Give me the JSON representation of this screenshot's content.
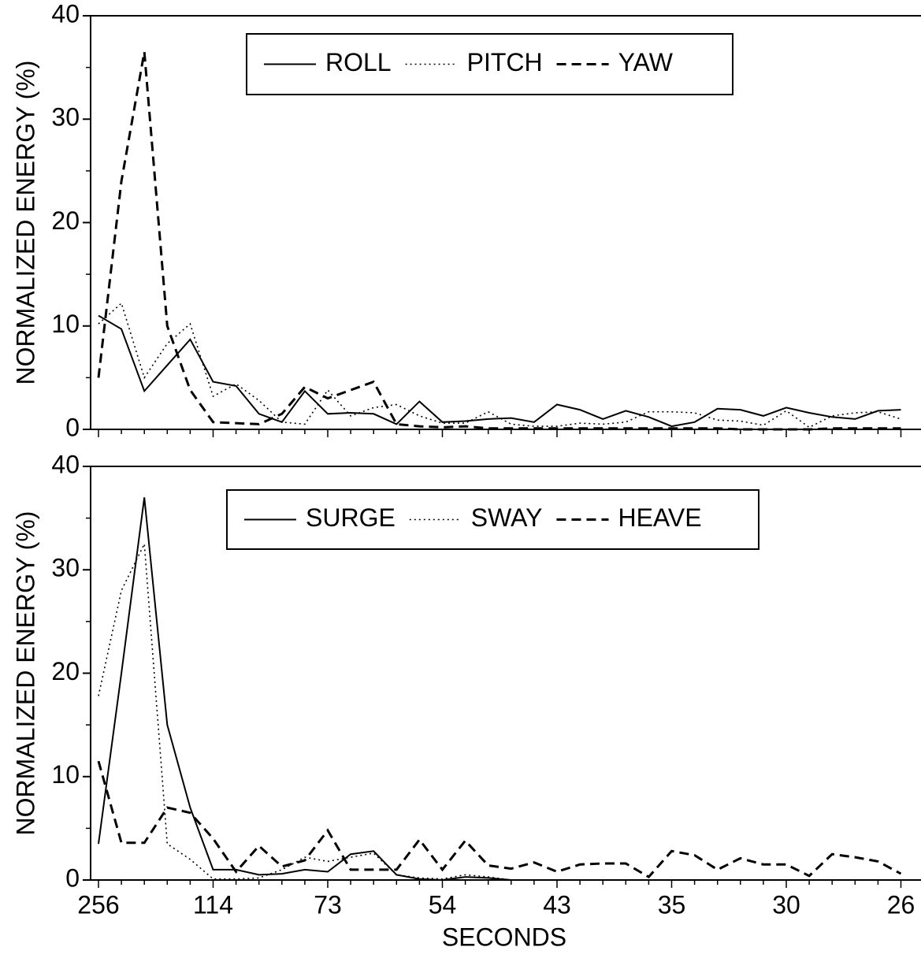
{
  "chart_data": [
    {
      "type": "line",
      "y_label": "NORMALIZED ENERGY (%)",
      "categories": [
        "256",
        null,
        null,
        null,
        null,
        "114",
        null,
        null,
        null,
        null,
        "73",
        null,
        null,
        null,
        null,
        "54",
        null,
        null,
        null,
        null,
        "43",
        null,
        null,
        null,
        null,
        "35",
        null,
        null,
        null,
        null,
        "30",
        null,
        null,
        null,
        null,
        "26"
      ],
      "ylim": [
        0,
        40
      ],
      "yticks": [
        0,
        10,
        20,
        30,
        40
      ],
      "series": [
        {
          "name": "ROLL",
          "color": "#000000",
          "style": "solid",
          "values": [
            11,
            9.7,
            3.7,
            6.2,
            8.7,
            4.6,
            4.2,
            1.5,
            0.7,
            3.7,
            1.5,
            1.6,
            1.5,
            0.5,
            2.7,
            0.7,
            0.8,
            1,
            1.1,
            0.7,
            2.4,
            1.9,
            1,
            1.8,
            1.2,
            0.3,
            0.7,
            2,
            1.9,
            1.3,
            2.1,
            1.6,
            1.2,
            1,
            1.8,
            1.9
          ]
        },
        {
          "name": "PITCH",
          "color": "#000000",
          "style": "dotted",
          "values": [
            10.2,
            12.2,
            5,
            8.3,
            10.2,
            3.2,
            4.4,
            2.8,
            0.7,
            0.5,
            3.8,
            1.3,
            2.1,
            2.4,
            1.3,
            0.6,
            0.6,
            1.7,
            0.5,
            0.3,
            0.3,
            0.6,
            0.5,
            0.7,
            1.7,
            1.7,
            1.6,
            0.9,
            0.8,
            0.4,
            1.8,
            0.2,
            1.3,
            1.6,
            1.7,
            1
          ]
        },
        {
          "name": "YAW",
          "color": "#000000",
          "style": "dashed",
          "values": [
            5,
            24,
            36.5,
            10,
            3.8,
            0.7,
            0.6,
            0.5,
            1.5,
            4.1,
            3,
            3.8,
            4.6,
            0.5,
            0.3,
            0.2,
            0.3,
            0.1,
            0.1,
            0.1,
            0.1,
            0.1,
            0.1,
            0.1,
            0.1,
            0.1,
            0.1,
            0.1,
            0,
            0,
            0,
            0,
            0.1,
            0.1,
            0.1,
            0.1
          ]
        }
      ]
    },
    {
      "type": "line",
      "y_label": "NORMALIZED ENERGY (%)",
      "x_label": "SECONDS",
      "categories": [
        "256",
        null,
        null,
        null,
        null,
        "114",
        null,
        null,
        null,
        null,
        "73",
        null,
        null,
        null,
        null,
        "54",
        null,
        null,
        null,
        null,
        "43",
        null,
        null,
        null,
        null,
        "35",
        null,
        null,
        null,
        null,
        "30",
        null,
        null,
        null,
        null,
        "26"
      ],
      "ylim": [
        0,
        40
      ],
      "yticks": [
        0,
        10,
        20,
        30,
        40
      ],
      "series": [
        {
          "name": "SURGE",
          "color": "#000000",
          "style": "solid",
          "values": [
            3.5,
            20,
            37,
            15,
            7,
            1,
            1,
            0.5,
            0.6,
            1,
            0.8,
            2.5,
            2.8,
            0.5,
            0.1,
            0,
            0.3,
            0.2,
            0,
            0,
            0,
            0,
            0,
            0,
            0,
            0,
            0,
            0,
            0,
            0,
            0,
            0,
            0,
            0,
            0,
            0
          ]
        },
        {
          "name": "SWAY",
          "color": "#000000",
          "style": "dotted",
          "values": [
            17.8,
            28,
            32.5,
            3.5,
            2,
            0.1,
            0.1,
            0.2,
            1,
            2.2,
            1.8,
            2.2,
            2.6,
            0.5,
            0.2,
            0.1,
            0.5,
            0.3,
            0,
            0,
            0,
            0,
            0,
            0,
            0,
            0,
            0,
            0,
            0,
            0,
            0,
            0,
            0,
            0,
            0,
            0
          ]
        },
        {
          "name": "HEAVE",
          "color": "#000000",
          "style": "dashed",
          "values": [
            11.5,
            3.6,
            3.6,
            7,
            6.5,
            4,
            0.8,
            3.3,
            1.3,
            1.9,
            4.8,
            1,
            1,
            1,
            3.9,
            1,
            3.8,
            1.4,
            1.1,
            1.7,
            0.8,
            1.5,
            1.6,
            1.6,
            0.3,
            2.8,
            2.4,
            1,
            2.1,
            1.5,
            1.5,
            0.4,
            2.5,
            2.2,
            1.8,
            0.6
          ]
        }
      ]
    }
  ]
}
